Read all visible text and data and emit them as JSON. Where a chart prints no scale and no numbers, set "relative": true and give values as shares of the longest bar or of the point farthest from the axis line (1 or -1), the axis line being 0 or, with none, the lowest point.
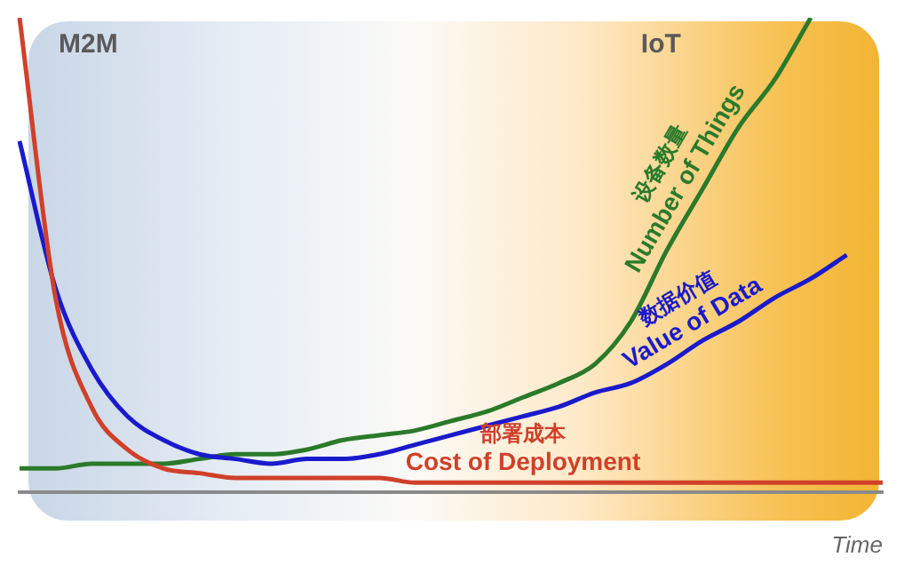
{
  "chart_data": {
    "type": "line",
    "relative": true,
    "xlabel": "Time",
    "annotations": [
      "M2M",
      "IoT"
    ],
    "legend": false,
    "grid": false,
    "marker": "none",
    "line_style": "solid",
    "categories": [
      null,
      null,
      null,
      null,
      null,
      null,
      null,
      null,
      null,
      null,
      null,
      null,
      null,
      null,
      null,
      null,
      null,
      null,
      null,
      null,
      null,
      null,
      null,
      null,
      null
    ],
    "series": [
      {
        "name": "部署成本\nCost of Deployment",
        "color": "#d0402a",
        "values": [
          1,
          0.41,
          0.18,
          0.09,
          0.05,
          0.04,
          0.03,
          0.03,
          0.03,
          0.03,
          0.03,
          0.02,
          0.02,
          0.02,
          0.02,
          0.02,
          0.02,
          0.02,
          0.02,
          0.02,
          0.02,
          0.02,
          0.02,
          0.02,
          0.02
        ]
      },
      {
        "name": "数据价值\nValue of Data",
        "color": "#1a1acc",
        "values": [
          0.74,
          0.43,
          0.26,
          0.16,
          0.11,
          0.08,
          0.07,
          0.06,
          0.07,
          0.07,
          0.08,
          0.1,
          0.12,
          0.14,
          0.16,
          0.18,
          0.21,
          0.23,
          0.27,
          0.32,
          0.36,
          0.41,
          0.45,
          0.5,
          null
        ]
      },
      {
        "name": "设备数量\nNumber of Things",
        "color": "#2a7a2a",
        "values": [
          0.05,
          0.05,
          0.06,
          0.06,
          0.06,
          0.07,
          0.08,
          0.08,
          0.09,
          0.11,
          0.12,
          0.13,
          0.15,
          0.17,
          0.2,
          0.23,
          0.27,
          0.36,
          0.51,
          0.64,
          0.77,
          0.87,
          1,
          null,
          null
        ]
      }
    ]
  }
}
